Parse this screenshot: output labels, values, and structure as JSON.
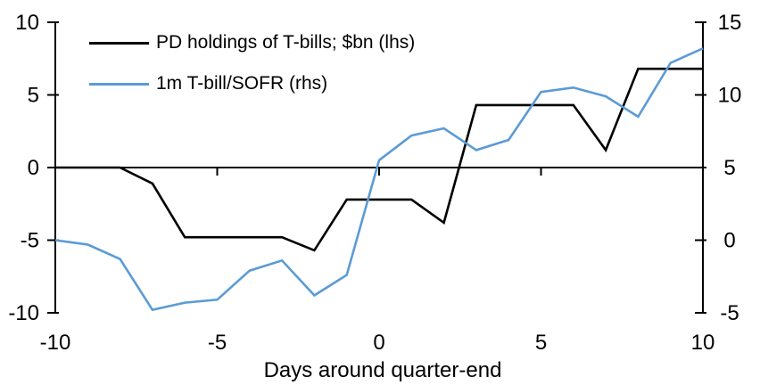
{
  "chart_data": {
    "type": "line",
    "title": "",
    "xlabel": "Days around quarter-end",
    "grid": false,
    "background": "#ffffff",
    "axis_color": "#000000",
    "x": [
      -10,
      -9,
      -8,
      -7,
      -6,
      -5,
      -4,
      -3,
      -2,
      -1,
      0,
      1,
      2,
      3,
      4,
      5,
      6,
      7,
      8,
      9,
      10
    ],
    "series": [
      {
        "name": "PD holdings of T-bills; $bn (lhs)",
        "axis": "left",
        "color": "#000000",
        "values": [
          0,
          0,
          0,
          -1.1,
          -4.8,
          -4.8,
          -4.8,
          -4.8,
          -5.7,
          -2.2,
          -2.2,
          -2.2,
          -3.8,
          4.3,
          4.3,
          4.3,
          4.3,
          1.2,
          6.8,
          6.8,
          6.8
        ]
      },
      {
        "name": "1m T-bill/SOFR (rhs)",
        "axis": "right",
        "color": "#5B9BD5",
        "values": [
          0,
          -0.3,
          -1.3,
          -4.8,
          -4.3,
          -4.1,
          -2.1,
          -1.4,
          -3.8,
          -2.4,
          5.5,
          7.2,
          7.7,
          6.2,
          6.9,
          10.2,
          10.5,
          9.9,
          8.5,
          12.2,
          13.2
        ]
      }
    ],
    "left_axis": {
      "range": [
        -10,
        10
      ],
      "ticks": [
        10,
        5,
        0,
        -5,
        -10
      ]
    },
    "right_axis": {
      "range": [
        -5,
        15
      ],
      "ticks": [
        15,
        10,
        5,
        0,
        -5
      ]
    },
    "x_axis": {
      "range": [
        -10,
        10
      ],
      "ticks": [
        -10,
        -5,
        0,
        5,
        10
      ]
    },
    "legend": {
      "position": "top-left"
    }
  }
}
